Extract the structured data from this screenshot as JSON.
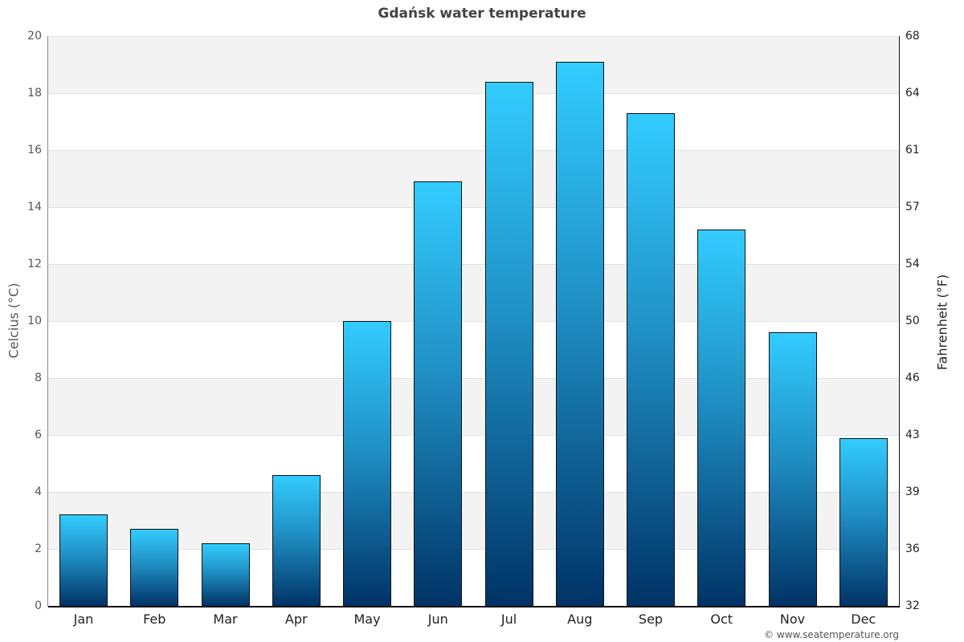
{
  "chart_data": {
    "type": "bar",
    "title": "Gdańsk water temperature",
    "xlabel": "",
    "ylabel": "Celcius (°C)",
    "ylabel_right": "Fahrenheit (°F)",
    "categories": [
      "Jan",
      "Feb",
      "Mar",
      "Apr",
      "May",
      "Jun",
      "Jul",
      "Aug",
      "Sep",
      "Oct",
      "Nov",
      "Dec"
    ],
    "values": [
      3.2,
      2.7,
      2.2,
      4.6,
      10.0,
      14.9,
      18.4,
      19.1,
      17.3,
      13.2,
      9.6,
      5.9
    ],
    "ylim": [
      0,
      20
    ],
    "yticks": [
      "0",
      "2",
      "4",
      "6",
      "8",
      "10",
      "12",
      "14",
      "16",
      "18",
      "20"
    ],
    "yticks_right": [
      "32",
      "36",
      "39",
      "43",
      "46",
      "50",
      "54",
      "57",
      "61",
      "64",
      "68"
    ],
    "grid": true,
    "legend": null,
    "colors": {
      "bar_top": "#33ccff",
      "bar_bottom": "#003366",
      "bar_border": "#111111",
      "band": "#f3f3f3"
    }
  },
  "credit": "© www.seatemperature.org"
}
